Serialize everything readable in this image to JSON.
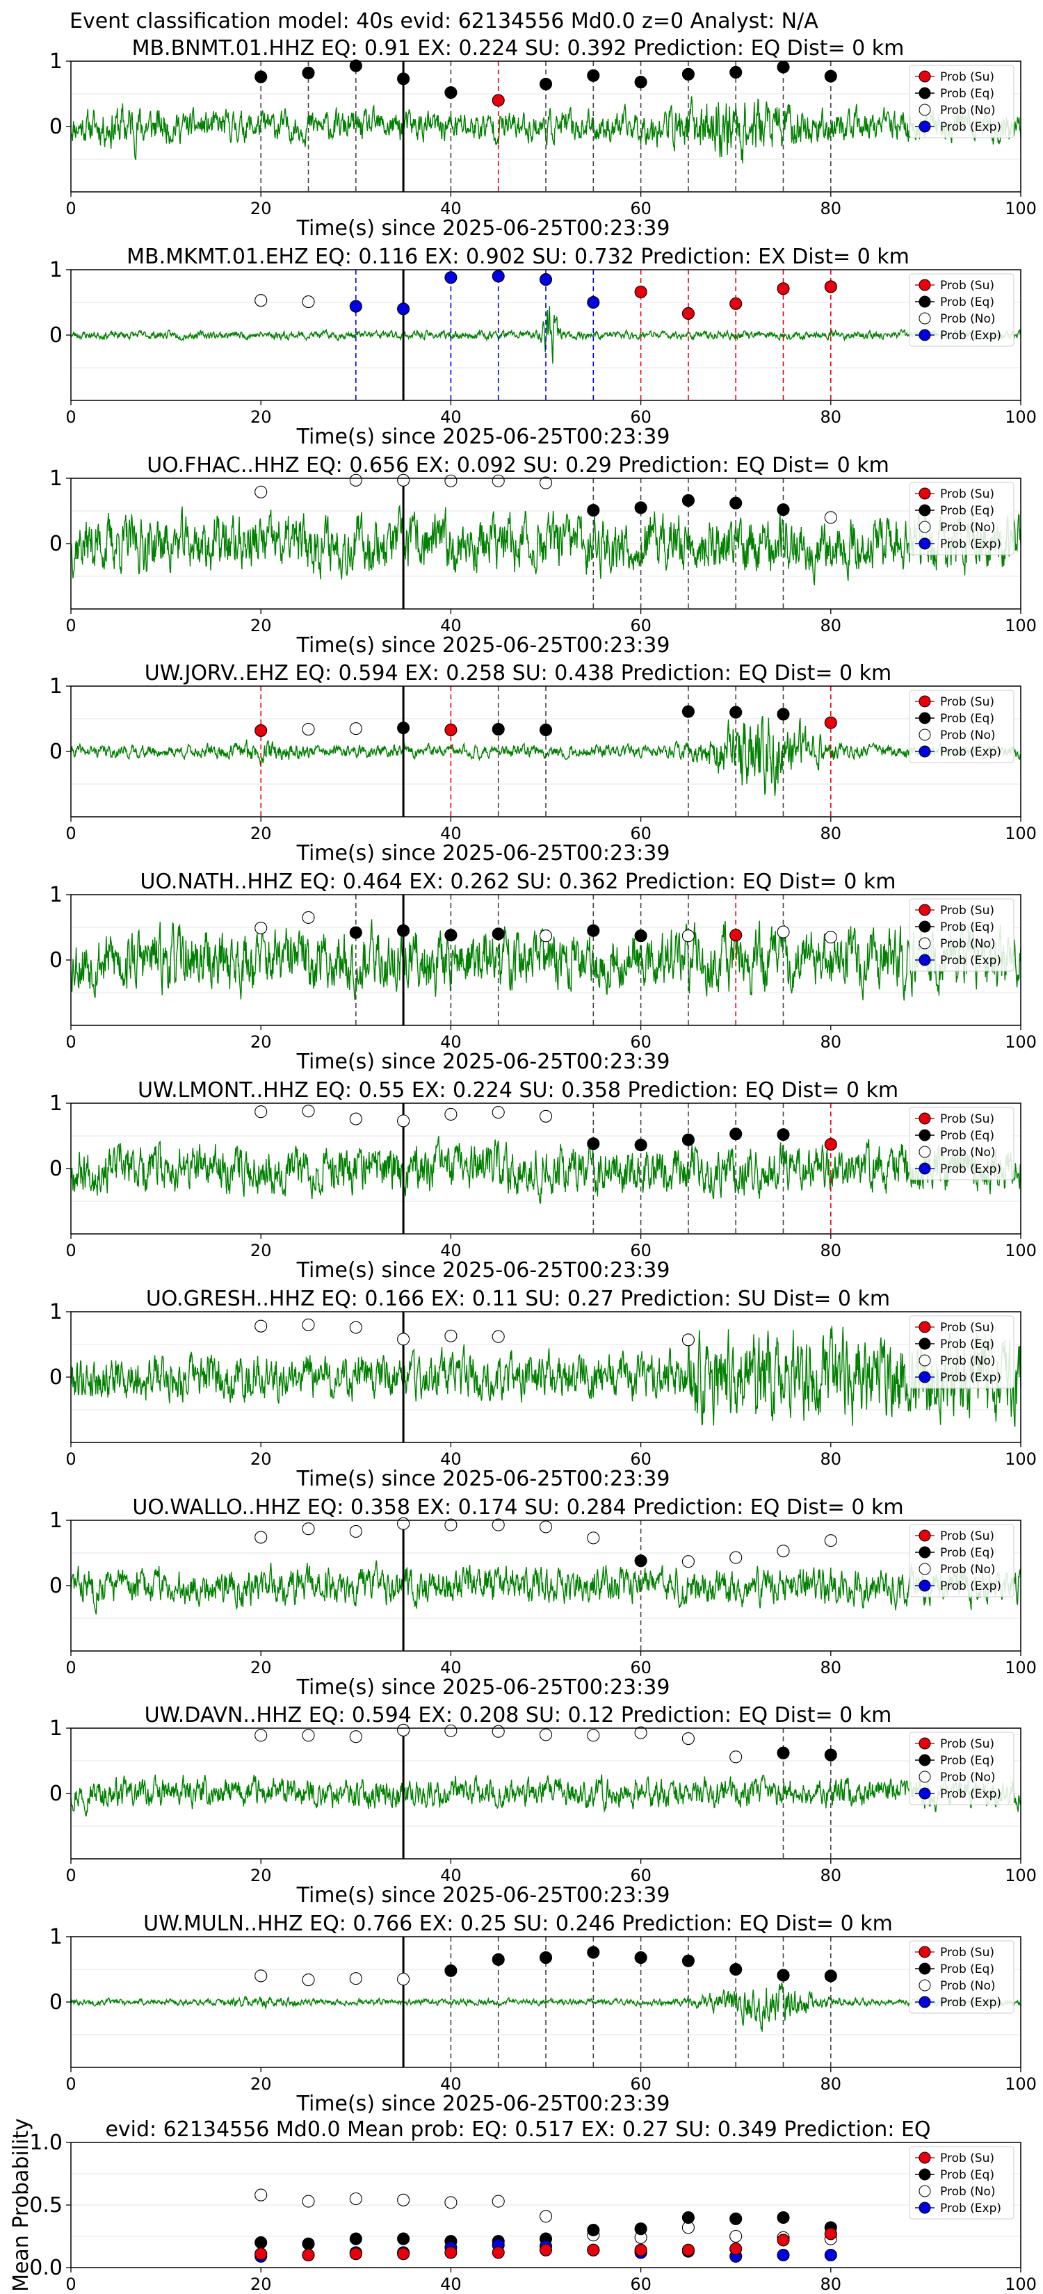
{
  "header": {
    "title": "Event classification model: 40s evid: 62134556 Md0.0 z=0 Analyst: N/A"
  },
  "colors": {
    "trace": "#008000",
    "su": "#e8000b",
    "eq": "#000000",
    "no": "#ffffff",
    "exp": "#0000e0"
  },
  "legend": {
    "su": "Prob (Su)",
    "eq": "Prob (Eq)",
    "no": "Prob (No)",
    "exp": "Prob (Exp)"
  },
  "chart_data": [
    {
      "type": "scatter",
      "title": "MB.BNMT.01.HHZ   EQ: 0.91   EX: 0.224   SU: 0.392   Prediction: EQ    Dist= 0 km",
      "xlabel": "Time(s) since 2025-06-25T00:23:39",
      "xlim": [
        0,
        100
      ],
      "ylim": [
        -1,
        1
      ],
      "xticks": [
        "0",
        "20",
        "40",
        "60",
        "80",
        "100"
      ],
      "yticks": [
        "1",
        "0"
      ],
      "pick_time": 35,
      "trace": {
        "seed": 11,
        "style": "burst",
        "amp": 0.3
      },
      "windows": [
        20,
        25,
        30,
        35,
        40,
        45,
        50,
        55,
        60,
        65,
        70,
        75,
        80
      ],
      "points": [
        {
          "x": 20,
          "y": 0.76,
          "cls": "eq"
        },
        {
          "x": 25,
          "y": 0.82,
          "cls": "eq"
        },
        {
          "x": 30,
          "y": 0.93,
          "cls": "eq"
        },
        {
          "x": 35,
          "y": 0.73,
          "cls": "eq"
        },
        {
          "x": 40,
          "y": 0.52,
          "cls": "eq"
        },
        {
          "x": 45,
          "y": 0.4,
          "cls": "su"
        },
        {
          "x": 50,
          "y": 0.65,
          "cls": "eq"
        },
        {
          "x": 55,
          "y": 0.78,
          "cls": "eq"
        },
        {
          "x": 60,
          "y": 0.68,
          "cls": "eq"
        },
        {
          "x": 65,
          "y": 0.8,
          "cls": "eq"
        },
        {
          "x": 70,
          "y": 0.83,
          "cls": "eq"
        },
        {
          "x": 75,
          "y": 0.91,
          "cls": "eq"
        },
        {
          "x": 80,
          "y": 0.77,
          "cls": "eq"
        }
      ]
    },
    {
      "type": "scatter",
      "title": "MB.MKMT.01.EHZ   EQ: 0.116   EX: 0.902   SU: 0.732   Prediction: EX    Dist= 0 km",
      "xlabel": "Time(s) since 2025-06-25T00:23:39",
      "xlim": [
        0,
        100
      ],
      "ylim": [
        -1,
        1
      ],
      "xticks": [
        "0",
        "20",
        "40",
        "60",
        "80",
        "100"
      ],
      "yticks": [
        "1",
        "0"
      ],
      "pick_time": 35,
      "trace": {
        "seed": 23,
        "style": "quiet",
        "amp": 0.08
      },
      "windows": [
        30,
        35,
        40,
        45,
        50,
        55,
        60,
        65,
        70,
        75,
        80
      ],
      "points": [
        {
          "x": 20,
          "y": 0.53,
          "cls": "no"
        },
        {
          "x": 25,
          "y": 0.51,
          "cls": "no"
        },
        {
          "x": 30,
          "y": 0.44,
          "cls": "exp"
        },
        {
          "x": 35,
          "y": 0.4,
          "cls": "exp"
        },
        {
          "x": 40,
          "y": 0.88,
          "cls": "exp"
        },
        {
          "x": 45,
          "y": 0.9,
          "cls": "exp"
        },
        {
          "x": 50,
          "y": 0.85,
          "cls": "exp"
        },
        {
          "x": 55,
          "y": 0.5,
          "cls": "exp"
        },
        {
          "x": 60,
          "y": 0.66,
          "cls": "su"
        },
        {
          "x": 65,
          "y": 0.33,
          "cls": "su"
        },
        {
          "x": 70,
          "y": 0.48,
          "cls": "su"
        },
        {
          "x": 75,
          "y": 0.71,
          "cls": "su"
        },
        {
          "x": 80,
          "y": 0.74,
          "cls": "su"
        }
      ]
    },
    {
      "type": "scatter",
      "title": "UO.FHAC..HHZ   EQ: 0.656   EX: 0.092   SU: 0.29   Prediction: EQ    Dist= 0 km",
      "xlabel": "Time(s) since 2025-06-25T00:23:39",
      "xlim": [
        0,
        100
      ],
      "ylim": [
        -1,
        1
      ],
      "xticks": [
        "0",
        "20",
        "40",
        "60",
        "80",
        "100"
      ],
      "yticks": [
        "1",
        "0"
      ],
      "pick_time": 35,
      "trace": {
        "seed": 37,
        "style": "noisy",
        "amp": 0.55
      },
      "windows": [
        55,
        60,
        65,
        70,
        75
      ],
      "points": [
        {
          "x": 20,
          "y": 0.79,
          "cls": "no"
        },
        {
          "x": 30,
          "y": 0.97,
          "cls": "no"
        },
        {
          "x": 35,
          "y": 0.97,
          "cls": "no"
        },
        {
          "x": 40,
          "y": 0.96,
          "cls": "no"
        },
        {
          "x": 45,
          "y": 0.96,
          "cls": "no"
        },
        {
          "x": 50,
          "y": 0.93,
          "cls": "no"
        },
        {
          "x": 55,
          "y": 0.51,
          "cls": "eq"
        },
        {
          "x": 60,
          "y": 0.55,
          "cls": "eq"
        },
        {
          "x": 65,
          "y": 0.66,
          "cls": "eq"
        },
        {
          "x": 70,
          "y": 0.62,
          "cls": "eq"
        },
        {
          "x": 75,
          "y": 0.52,
          "cls": "eq"
        },
        {
          "x": 80,
          "y": 0.4,
          "cls": "no"
        }
      ]
    },
    {
      "type": "scatter",
      "title": "UW.JORV..EHZ   EQ: 0.594   EX: 0.258   SU: 0.438   Prediction: EQ    Dist= 0 km",
      "xlabel": "Time(s) since 2025-06-25T00:23:39",
      "xlim": [
        0,
        100
      ],
      "ylim": [
        -1,
        1
      ],
      "xticks": [
        "0",
        "20",
        "40",
        "60",
        "80",
        "100"
      ],
      "yticks": [
        "1",
        "0"
      ],
      "pick_time": 35,
      "trace": {
        "seed": 41,
        "style": "late",
        "amp": 0.12
      },
      "windows": [
        20,
        40,
        45,
        50,
        65,
        70,
        75,
        80
      ],
      "points": [
        {
          "x": 20,
          "y": 0.32,
          "cls": "su"
        },
        {
          "x": 25,
          "y": 0.34,
          "cls": "no"
        },
        {
          "x": 30,
          "y": 0.35,
          "cls": "no"
        },
        {
          "x": 35,
          "y": 0.36,
          "cls": "eq"
        },
        {
          "x": 40,
          "y": 0.33,
          "cls": "su"
        },
        {
          "x": 45,
          "y": 0.34,
          "cls": "eq"
        },
        {
          "x": 50,
          "y": 0.33,
          "cls": "eq"
        },
        {
          "x": 65,
          "y": 0.61,
          "cls": "eq"
        },
        {
          "x": 70,
          "y": 0.6,
          "cls": "eq"
        },
        {
          "x": 75,
          "y": 0.57,
          "cls": "eq"
        },
        {
          "x": 80,
          "y": 0.44,
          "cls": "su"
        }
      ]
    },
    {
      "type": "scatter",
      "title": "UO.NATH..HHZ   EQ: 0.464   EX: 0.262   SU: 0.362   Prediction: EQ    Dist= 0 km",
      "xlabel": "Time(s) since 2025-06-25T00:23:39",
      "xlim": [
        0,
        100
      ],
      "ylim": [
        -1,
        1
      ],
      "xticks": [
        "0",
        "20",
        "40",
        "60",
        "80",
        "100"
      ],
      "yticks": [
        "1",
        "0"
      ],
      "pick_time": 35,
      "trace": {
        "seed": 53,
        "style": "noisy",
        "amp": 0.6
      },
      "windows": [
        30,
        35,
        40,
        45,
        55,
        60,
        65,
        70,
        75
      ],
      "points": [
        {
          "x": 20,
          "y": 0.49,
          "cls": "no"
        },
        {
          "x": 25,
          "y": 0.65,
          "cls": "no"
        },
        {
          "x": 30,
          "y": 0.42,
          "cls": "eq"
        },
        {
          "x": 35,
          "y": 0.45,
          "cls": "eq"
        },
        {
          "x": 40,
          "y": 0.38,
          "cls": "eq"
        },
        {
          "x": 45,
          "y": 0.4,
          "cls": "eq"
        },
        {
          "x": 50,
          "y": 0.37,
          "cls": "no"
        },
        {
          "x": 55,
          "y": 0.45,
          "cls": "eq"
        },
        {
          "x": 60,
          "y": 0.37,
          "cls": "eq"
        },
        {
          "x": 65,
          "y": 0.37,
          "cls": "no"
        },
        {
          "x": 70,
          "y": 0.38,
          "cls": "su"
        },
        {
          "x": 75,
          "y": 0.43,
          "cls": "no"
        },
        {
          "x": 80,
          "y": 0.35,
          "cls": "no"
        }
      ]
    },
    {
      "type": "scatter",
      "title": "UW.LMONT..HHZ   EQ: 0.55   EX: 0.224   SU: 0.358   Prediction: EQ    Dist= 0 km",
      "xlabel": "Time(s) since 2025-06-25T00:23:39",
      "xlim": [
        0,
        100
      ],
      "ylim": [
        -1,
        1
      ],
      "xticks": [
        "0",
        "20",
        "40",
        "60",
        "80",
        "100"
      ],
      "yticks": [
        "1",
        "0"
      ],
      "pick_time": 35,
      "trace": {
        "seed": 67,
        "style": "noisy",
        "amp": 0.45
      },
      "windows": [
        55,
        60,
        65,
        70,
        75,
        80
      ],
      "points": [
        {
          "x": 20,
          "y": 0.87,
          "cls": "no"
        },
        {
          "x": 25,
          "y": 0.88,
          "cls": "no"
        },
        {
          "x": 30,
          "y": 0.76,
          "cls": "no"
        },
        {
          "x": 35,
          "y": 0.73,
          "cls": "no"
        },
        {
          "x": 40,
          "y": 0.83,
          "cls": "no"
        },
        {
          "x": 45,
          "y": 0.86,
          "cls": "no"
        },
        {
          "x": 50,
          "y": 0.8,
          "cls": "no"
        },
        {
          "x": 55,
          "y": 0.38,
          "cls": "eq"
        },
        {
          "x": 60,
          "y": 0.36,
          "cls": "eq"
        },
        {
          "x": 65,
          "y": 0.44,
          "cls": "eq"
        },
        {
          "x": 70,
          "y": 0.53,
          "cls": "eq"
        },
        {
          "x": 75,
          "y": 0.52,
          "cls": "eq"
        },
        {
          "x": 80,
          "y": 0.37,
          "cls": "su"
        }
      ]
    },
    {
      "type": "scatter",
      "title": "UO.GRESH..HHZ   EQ: 0.166   EX: 0.11   SU: 0.27   Prediction: SU    Dist= 0 km",
      "xlabel": "Time(s) since 2025-06-25T00:23:39",
      "xlim": [
        0,
        100
      ],
      "ylim": [
        -1,
        1
      ],
      "xticks": [
        "0",
        "20",
        "40",
        "60",
        "80",
        "100"
      ],
      "yticks": [
        "1",
        "0"
      ],
      "pick_time": 35,
      "trace": {
        "seed": 79,
        "style": "grow",
        "amp": 0.45
      },
      "windows": [],
      "points": [
        {
          "x": 20,
          "y": 0.78,
          "cls": "no"
        },
        {
          "x": 25,
          "y": 0.8,
          "cls": "no"
        },
        {
          "x": 30,
          "y": 0.76,
          "cls": "no"
        },
        {
          "x": 35,
          "y": 0.58,
          "cls": "no"
        },
        {
          "x": 40,
          "y": 0.63,
          "cls": "no"
        },
        {
          "x": 45,
          "y": 0.62,
          "cls": "no"
        },
        {
          "x": 65,
          "y": 0.57,
          "cls": "no"
        }
      ]
    },
    {
      "type": "scatter",
      "title": "UO.WALLO..HHZ   EQ: 0.358   EX: 0.174   SU: 0.284   Prediction: EQ    Dist= 0 km",
      "xlabel": "Time(s) since 2025-06-25T00:23:39",
      "xlim": [
        0,
        100
      ],
      "ylim": [
        -1,
        1
      ],
      "xticks": [
        "0",
        "20",
        "40",
        "60",
        "80",
        "100"
      ],
      "yticks": [
        "1",
        "0"
      ],
      "pick_time": 35,
      "trace": {
        "seed": 83,
        "style": "noisy",
        "amp": 0.35
      },
      "windows": [
        60
      ],
      "points": [
        {
          "x": 20,
          "y": 0.74,
          "cls": "no"
        },
        {
          "x": 25,
          "y": 0.87,
          "cls": "no"
        },
        {
          "x": 30,
          "y": 0.83,
          "cls": "no"
        },
        {
          "x": 35,
          "y": 0.95,
          "cls": "no"
        },
        {
          "x": 40,
          "y": 0.93,
          "cls": "no"
        },
        {
          "x": 45,
          "y": 0.93,
          "cls": "no"
        },
        {
          "x": 50,
          "y": 0.9,
          "cls": "no"
        },
        {
          "x": 55,
          "y": 0.73,
          "cls": "no"
        },
        {
          "x": 60,
          "y": 0.38,
          "cls": "eq"
        },
        {
          "x": 65,
          "y": 0.37,
          "cls": "no"
        },
        {
          "x": 70,
          "y": 0.43,
          "cls": "no"
        },
        {
          "x": 75,
          "y": 0.53,
          "cls": "no"
        },
        {
          "x": 80,
          "y": 0.69,
          "cls": "no"
        }
      ]
    },
    {
      "type": "scatter",
      "title": "UW.DAVN..HHZ   EQ: 0.594   EX: 0.208   SU: 0.12   Prediction: EQ    Dist= 0 km",
      "xlabel": "Time(s) since 2025-06-25T00:23:39",
      "xlim": [
        0,
        100
      ],
      "ylim": [
        -1,
        1
      ],
      "xticks": [
        "0",
        "20",
        "40",
        "60",
        "80",
        "100"
      ],
      "yticks": [
        "1",
        "0"
      ],
      "pick_time": 35,
      "trace": {
        "seed": 97,
        "style": "noisy",
        "amp": 0.28
      },
      "windows": [
        75,
        80
      ],
      "points": [
        {
          "x": 20,
          "y": 0.89,
          "cls": "no"
        },
        {
          "x": 25,
          "y": 0.89,
          "cls": "no"
        },
        {
          "x": 30,
          "y": 0.87,
          "cls": "no"
        },
        {
          "x": 35,
          "y": 0.97,
          "cls": "no"
        },
        {
          "x": 40,
          "y": 0.96,
          "cls": "no"
        },
        {
          "x": 45,
          "y": 0.95,
          "cls": "no"
        },
        {
          "x": 50,
          "y": 0.9,
          "cls": "no"
        },
        {
          "x": 55,
          "y": 0.89,
          "cls": "no"
        },
        {
          "x": 60,
          "y": 0.93,
          "cls": "no"
        },
        {
          "x": 65,
          "y": 0.84,
          "cls": "no"
        },
        {
          "x": 70,
          "y": 0.56,
          "cls": "no"
        },
        {
          "x": 75,
          "y": 0.62,
          "cls": "eq"
        },
        {
          "x": 80,
          "y": 0.59,
          "cls": "eq"
        }
      ]
    },
    {
      "type": "scatter",
      "title": "UW.MULN..HHZ   EQ: 0.766   EX: 0.25   SU: 0.246   Prediction: EQ    Dist= 0 km",
      "xlabel": "Time(s) since 2025-06-25T00:23:39",
      "xlim": [
        0,
        100
      ],
      "ylim": [
        -1,
        1
      ],
      "xticks": [
        "0",
        "20",
        "40",
        "60",
        "80",
        "100"
      ],
      "yticks": [
        "1",
        "0"
      ],
      "pick_time": 35,
      "trace": {
        "seed": 101,
        "style": "late",
        "amp": 0.06
      },
      "windows": [
        40,
        45,
        50,
        55,
        60,
        65,
        70,
        75,
        80
      ],
      "points": [
        {
          "x": 20,
          "y": 0.4,
          "cls": "no"
        },
        {
          "x": 25,
          "y": 0.34,
          "cls": "no"
        },
        {
          "x": 30,
          "y": 0.36,
          "cls": "no"
        },
        {
          "x": 35,
          "y": 0.35,
          "cls": "no"
        },
        {
          "x": 40,
          "y": 0.48,
          "cls": "eq"
        },
        {
          "x": 45,
          "y": 0.65,
          "cls": "eq"
        },
        {
          "x": 50,
          "y": 0.68,
          "cls": "eq"
        },
        {
          "x": 55,
          "y": 0.76,
          "cls": "eq"
        },
        {
          "x": 60,
          "y": 0.68,
          "cls": "eq"
        },
        {
          "x": 65,
          "y": 0.63,
          "cls": "eq"
        },
        {
          "x": 70,
          "y": 0.5,
          "cls": "eq"
        },
        {
          "x": 75,
          "y": 0.41,
          "cls": "eq"
        },
        {
          "x": 80,
          "y": 0.4,
          "cls": "eq"
        }
      ]
    },
    {
      "type": "scatter",
      "title": "evid: 62134556  Md0.0   Mean prob:   EQ: 0.517  EX: 0.27  SU: 0.349   Prediction: EQ",
      "xlabel": "",
      "ylabel": "Mean Probability",
      "xlim": [
        0,
        100
      ],
      "ylim": [
        0,
        1
      ],
      "xticks": [
        "0",
        "20",
        "40",
        "60",
        "80",
        "100"
      ],
      "yticks": [
        "1.0",
        "0.5",
        "0.0"
      ],
      "x": [
        20,
        25,
        30,
        35,
        40,
        45,
        50,
        55,
        60,
        65,
        70,
        75,
        80
      ],
      "series": [
        {
          "cls": "no",
          "values": [
            0.58,
            0.53,
            0.55,
            0.54,
            0.52,
            0.53,
            0.41,
            0.26,
            0.24,
            0.32,
            0.25,
            0.24,
            0.23
          ]
        },
        {
          "cls": "eq",
          "values": [
            0.2,
            0.19,
            0.23,
            0.23,
            0.21,
            0.21,
            0.23,
            0.3,
            0.31,
            0.4,
            0.39,
            0.4,
            0.32
          ]
        },
        {
          "cls": "exp",
          "values": [
            0.09,
            0.1,
            0.12,
            0.12,
            0.16,
            0.18,
            0.17,
            0.14,
            0.12,
            0.13,
            0.09,
            0.1,
            0.1
          ]
        },
        {
          "cls": "su",
          "values": [
            0.11,
            0.1,
            0.11,
            0.11,
            0.12,
            0.12,
            0.14,
            0.14,
            0.14,
            0.14,
            0.15,
            0.22,
            0.27
          ]
        }
      ]
    }
  ]
}
